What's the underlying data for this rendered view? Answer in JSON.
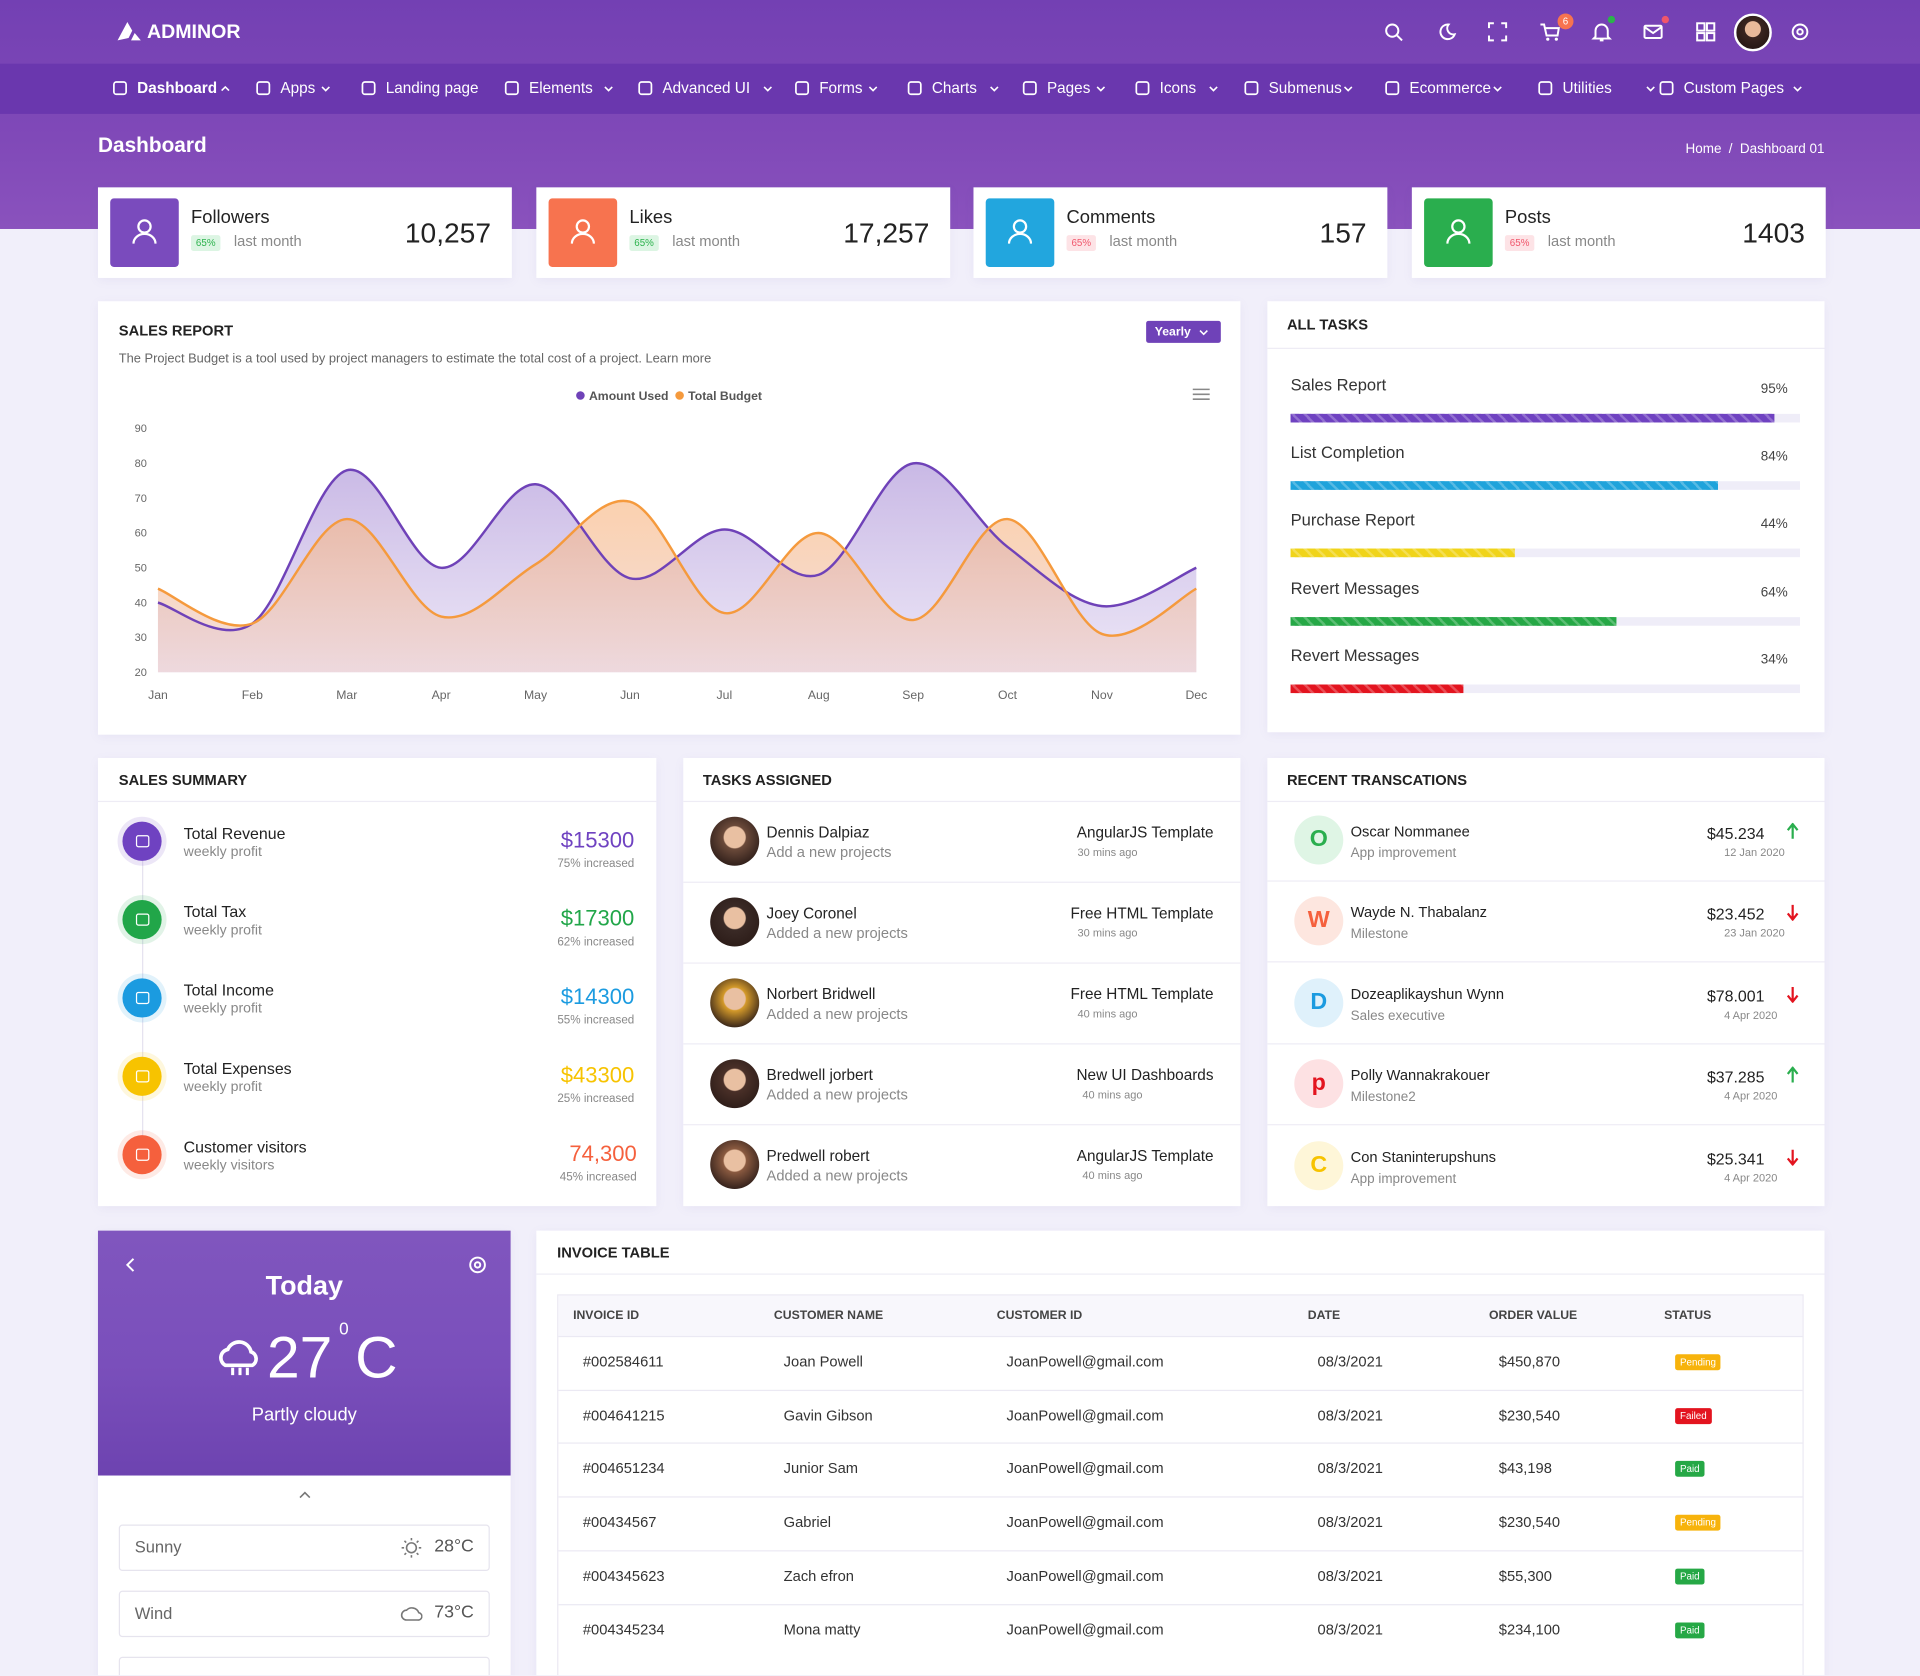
{
  "header": {
    "brand": "ADMINOR",
    "cart_badge": "6"
  },
  "nav": [
    "Dashboard",
    "Apps",
    "Landing page",
    "Elements",
    "Advanced UI",
    "Forms",
    "Charts",
    "Pages",
    "Icons",
    "Submenus",
    "Ecommerce",
    "Utilities",
    "Custom Pages"
  ],
  "page_title": "Dashboard",
  "breadcrumb": [
    "Home",
    "/",
    "Dashboard 01"
  ],
  "stats": [
    {
      "title": "Followers",
      "badge": "65%",
      "period": "last month",
      "value": "10,257",
      "color": "#7a4bbd",
      "badge_color": "#2bb24c",
      "badge_bg": "#dcf5e3"
    },
    {
      "title": "Likes",
      "badge": "65%",
      "period": "last month",
      "value": "17,257",
      "color": "#f7734f",
      "badge_color": "#2bb24c",
      "badge_bg": "#dcf5e3"
    },
    {
      "title": "Comments",
      "badge": "65%",
      "period": "last month",
      "value": "157",
      "color": "#22a6de",
      "badge_color": "#f0566b",
      "badge_bg": "#fde3e6"
    },
    {
      "title": "Posts",
      "badge": "65%",
      "period": "last month",
      "value": "1403",
      "color": "#2aae4e",
      "badge_color": "#f0566b",
      "badge_bg": "#fde3e6"
    }
  ],
  "chart_data": {
    "type": "area",
    "title": "SALES REPORT",
    "subtitle": "The Project Budget is a tool used by project managers to estimate the total cost of a project. Learn more",
    "button": "Yearly",
    "categories": [
      "Jan",
      "Feb",
      "Mar",
      "Apr",
      "May",
      "Jun",
      "Jul",
      "Aug",
      "Sep",
      "Oct",
      "Nov",
      "Dec"
    ],
    "series": [
      {
        "name": "Amount Used",
        "color": "#6f42b8",
        "values": [
          40,
          34,
          78,
          50,
          74,
          47,
          61,
          48,
          80,
          56,
          39,
          50
        ]
      },
      {
        "name": "Total Budget",
        "color": "#f59a3d",
        "values": [
          44,
          34,
          64,
          36,
          51,
          69,
          37,
          60,
          35,
          64,
          31,
          44
        ]
      }
    ],
    "ylim": [
      20,
      90
    ],
    "yticks": [
      20,
      30,
      40,
      50,
      60,
      70,
      80,
      90
    ],
    "grid": false,
    "legend": "top"
  },
  "tasks": {
    "title": "ALL TASKS",
    "items": [
      {
        "name": "Sales Report",
        "value": 95,
        "label": "95%",
        "color": "#6f42c1"
      },
      {
        "name": "List Completion",
        "value": 84,
        "label": "84%",
        "color": "#1fa3db"
      },
      {
        "name": "Purchase Report",
        "value": 44,
        "label": "44%",
        "color": "#f0d41a"
      },
      {
        "name": "Revert Messages",
        "value": 64,
        "label": "64%",
        "color": "#26a846"
      },
      {
        "name": "Revert Messages",
        "value": 34,
        "label": "34%",
        "color": "#e3141f"
      }
    ]
  },
  "sales_summary": {
    "title": "SALES SUMMARY",
    "items": [
      {
        "name": "Total Revenue",
        "sub": "weekly profit",
        "value": "$15300",
        "note": "75% increased",
        "color": "#6f42c1"
      },
      {
        "name": "Total Tax",
        "sub": "weekly profit",
        "value": "$17300",
        "note": "62% increased",
        "color": "#21a649"
      },
      {
        "name": "Total Income",
        "sub": "weekly profit",
        "value": "$14300",
        "note": "55% increased",
        "color": "#1b9be0"
      },
      {
        "name": "Total Expenses",
        "sub": "weekly profit",
        "value": "$43300",
        "note": "25% increased",
        "color": "#f7c300"
      },
      {
        "name": "Customer visitors",
        "sub": "weekly visitors",
        "value": "74,300",
        "note": "45% increased",
        "color": "#f5603d"
      }
    ]
  },
  "tasks_assigned": {
    "title": "TASKS ASSIGNED",
    "items": [
      {
        "name": "Dennis Dalpiaz",
        "sub": "Add a new projects",
        "task": "AngularJS Template",
        "time": "30 mins ago"
      },
      {
        "name": "Joey Coronel",
        "sub": "Added a new projects",
        "task": "Free HTML Template",
        "time": "30 mins ago"
      },
      {
        "name": "Norbert Bridwell",
        "sub": "Added a new projects",
        "task": "Free HTML Template",
        "time": "40 mins ago"
      },
      {
        "name": "Bredwell jorbert",
        "sub": "Added a new projects",
        "task": "New UI Dashboards",
        "time": "40 mins ago"
      },
      {
        "name": "Predwell robert",
        "sub": "Added a new projects",
        "task": "AngularJS Template",
        "time": "40 mins ago"
      }
    ]
  },
  "transactions": {
    "title": "RECENT TRANSCATIONS",
    "items": [
      {
        "letter": "O",
        "name": "Oscar Nommanee",
        "sub": "App improvement",
        "amount": "$45.234",
        "date": "12 Jan 2020",
        "trend": "up",
        "color": "#2aae4e",
        "bg": "#dff5e5"
      },
      {
        "letter": "W",
        "name": "Wayde N. Thabalanz",
        "sub": "Milestone",
        "amount": "$23.452",
        "date": "23 Jan 2020",
        "trend": "down",
        "color": "#f5603d",
        "bg": "#fde6df"
      },
      {
        "letter": "D",
        "name": "Dozeaplikayshun Wynn",
        "sub": "Sales executive",
        "amount": "$78.001",
        "date": "4 Apr 2020",
        "trend": "down",
        "color": "#1b9be0",
        "bg": "#dff1fb"
      },
      {
        "letter": "p",
        "name": "Polly Wannakrakouer",
        "sub": "Milestone2",
        "amount": "$37.285",
        "date": "4 Apr 2020",
        "trend": "up",
        "color": "#e3141f",
        "bg": "#fde1e3"
      },
      {
        "letter": "C",
        "name": "Con Staninterupshuns",
        "sub": "App improvement",
        "amount": "$25.341",
        "date": "4 Apr 2020",
        "trend": "down",
        "color": "#f7c300",
        "bg": "#fef6d8"
      }
    ]
  },
  "weather": {
    "title": "Today",
    "temp": "27",
    "deg": "0",
    "unit": "C",
    "desc": "Partly cloudy",
    "rows": [
      {
        "name": "Sunny",
        "value": "28°C"
      },
      {
        "name": "Wind",
        "value": "73°C"
      }
    ]
  },
  "invoice": {
    "title": "INVOICE TABLE",
    "columns": [
      "INVOICE ID",
      "CUSTOMER NAME",
      "CUSTOMER ID",
      "DATE",
      "ORDER VALUE",
      "STATUS"
    ],
    "rows": [
      [
        "#002584611",
        "Joan Powell",
        "JoanPowell@gmail.com",
        "08/3/2021",
        "$450,870",
        "Pending"
      ],
      [
        "#004641215",
        "Gavin Gibson",
        "JoanPowell@gmail.com",
        "08/3/2021",
        "$230,540",
        "Failed"
      ],
      [
        "#004651234",
        "Junior Sam",
        "JoanPowell@gmail.com",
        "08/3/2021",
        "$43,198",
        "Paid"
      ],
      [
        "#00434567",
        "Gabriel",
        "JoanPowell@gmail.com",
        "08/3/2021",
        "$230,540",
        "Pending"
      ],
      [
        "#004345623",
        "Zach efron",
        "JoanPowell@gmail.com",
        "08/3/2021",
        "$55,300",
        "Paid"
      ],
      [
        "#004345234",
        "Mona matty",
        "JoanPowell@gmail.com",
        "08/3/2021",
        "$234,100",
        "Paid"
      ]
    ],
    "status_colors": [
      "#f7b30c",
      "#e3141f",
      "#26a846",
      "#f7b30c",
      "#26a846",
      "#26a846"
    ]
  }
}
